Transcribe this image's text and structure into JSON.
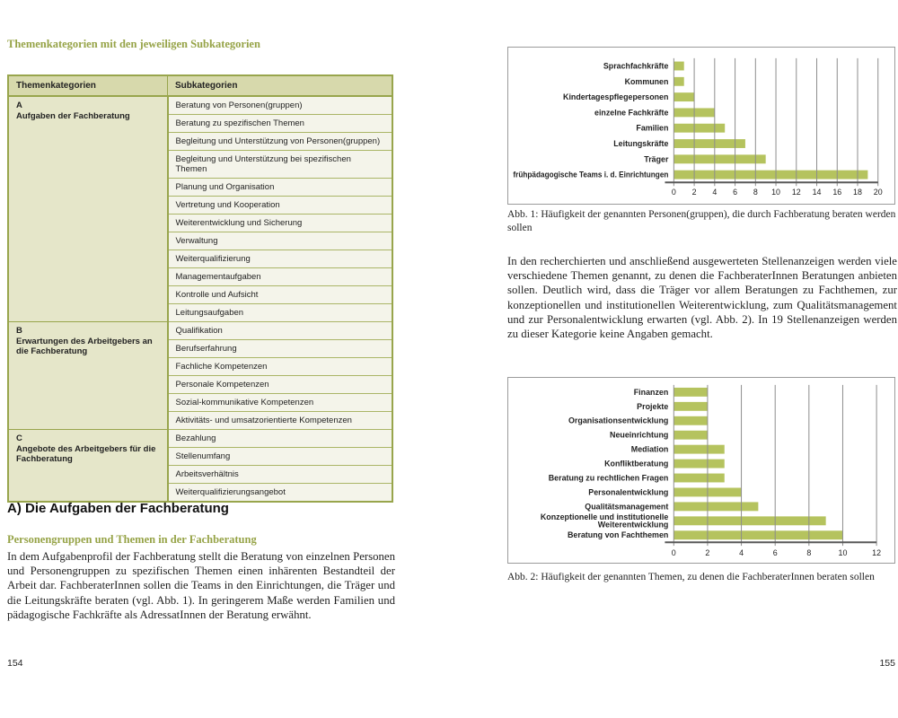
{
  "page_left": {
    "title": "Themenkategorien mit den jeweiligen Subkategorien",
    "table": {
      "headers": [
        "Themenkategorien",
        "Subkategorien"
      ],
      "sections": [
        {
          "id": "A",
          "label": "Aufgaben der Fachberatung",
          "subcategories": [
            "Beratung von Personen(gruppen)",
            "Beratung zu spezifischen Themen",
            "Begleitung und Unterstützung von Personen(gruppen)",
            "Begleitung und Unterstützung bei spezifischen Themen",
            "Planung und Organisation",
            "Vertretung und Kooperation",
            "Weiterentwicklung und Sicherung",
            "Verwaltung",
            "Weiterqualifizierung",
            "Managementaufgaben",
            "Kontrolle und Aufsicht",
            "Leitungsaufgaben"
          ]
        },
        {
          "id": "B",
          "label": "Erwartungen des Arbeitgebers an die Fachberatung",
          "subcategories": [
            "Qualifikation",
            "Berufserfahrung",
            "Fachliche Kompetenzen",
            "Personale Kompetenzen",
            "Sozial-kommunikative Kompetenzen",
            "Aktivitäts- und umsatzorientierte Kompetenzen"
          ]
        },
        {
          "id": "C",
          "label": "Angebote des Arbeitgebers für die Fachberatung",
          "subcategories": [
            "Bezahlung",
            "Stellenumfang",
            "Arbeitsverhältnis",
            "Weiterqualifizierungsangebot"
          ]
        }
      ]
    },
    "section_heading": "A) Die Aufgaben der Fachberatung",
    "sub_heading": "Personengruppen und Themen in der Fachberatung",
    "paragraph": "In dem Aufgabenprofil der Fachberatung stellt die Beratung von einzelnen Personen und Personengruppen zu spezifischen Themen einen inhärenten Bestandteil der Arbeit dar. FachberaterInnen sollen die Teams in den Einrichtungen, die Träger und die Leitungskräfte beraten (vgl. Abb. 1). In geringerem Maße werden Familien und pädagogische Fachkräfte als AdressatInnen der Beratung erwähnt.",
    "page_number": "154"
  },
  "page_right": {
    "paragraph": "In den recherchierten und anschließend ausgewerteten Stellenanzeigen werden viele verschiedene Themen genannt, zu denen die FachberaterInnen Beratungen anbieten sollen. Deutlich wird, dass die Träger vor allem Beratungen zu Fachthemen, zur konzeptionellen und institutionellen Weiterentwicklung, zum Qualitätsmanagement und zur Personalentwicklung erwarten (vgl. Abb. 2). In 19 Stellenanzeigen werden zu dieser Kategorie keine Angaben gemacht.",
    "page_number": "155"
  },
  "colors": {
    "accent_olive": "#96a347",
    "table_header_bg": "#d7d9ac",
    "table_category_bg": "#e5e6c9",
    "table_row_bg": "#f4f4ea",
    "table_border": "#98a54c",
    "bar_green": "#b5c35e",
    "grid_gray": "#8c8c8c",
    "axis_gray": "#595959",
    "frame_border": "#9b9b9b",
    "text": "#1f1f1f"
  },
  "chart_data": [
    {
      "type": "bar",
      "orientation": "horizontal",
      "title": "",
      "categories": [
        "Sprachfachkräfte",
        "Kommunen",
        "Kindertagespflegepersonen",
        "einzelne Fachkräfte",
        "Familien",
        "Leitungskräfte",
        "Träger",
        "frühpädagogische Teams i. d. Einrichtungen"
      ],
      "values": [
        1,
        1,
        2,
        4,
        5,
        7,
        9,
        19
      ],
      "xlim": [
        0,
        20
      ],
      "xticks": [
        0,
        2,
        4,
        6,
        8,
        10,
        12,
        14,
        16,
        18,
        20
      ],
      "grid": true,
      "legend": false,
      "bar_color": "#b5c35e",
      "caption": "Abb. 1: Häufigkeit der genannten Personen(gruppen), die durch Fachberatung beraten werden sollen"
    },
    {
      "type": "bar",
      "orientation": "horizontal",
      "title": "",
      "categories": [
        "Finanzen",
        "Projekte",
        "Organisationsentwicklung",
        "Neueinrichtung",
        "Mediation",
        "Konfliktberatung",
        "Beratung zu rechtlichen Fragen",
        "Personalentwicklung",
        "Qualitätsmanagement",
        "Konzeptionelle und institutionelle Weiterentwicklung",
        "Beratung von Fachthemen"
      ],
      "values": [
        2,
        2,
        2,
        2,
        3,
        3,
        3,
        4,
        5,
        9,
        10
      ],
      "xlim": [
        0,
        12
      ],
      "xticks": [
        0,
        2,
        4,
        6,
        8,
        10,
        12
      ],
      "grid": true,
      "legend": false,
      "bar_color": "#b5c35e",
      "caption": "Abb. 2: Häufigkeit der genannten Themen, zu denen die FachberaterInnen beraten sollen"
    }
  ]
}
